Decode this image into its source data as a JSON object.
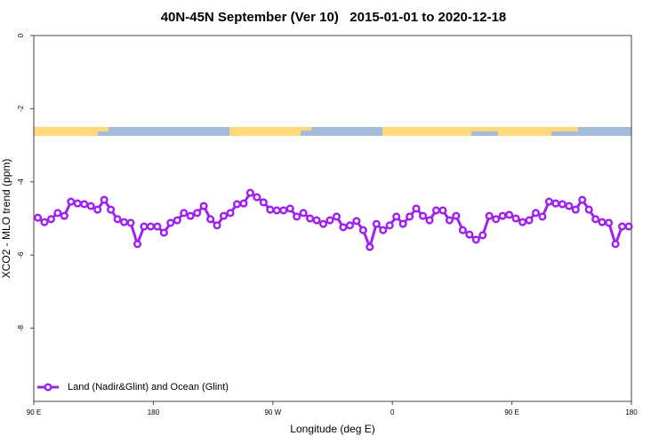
{
  "chart_data": {
    "type": "line",
    "title": "40N-45N September (Ver 10)   2015-01-01 to 2020-12-18",
    "x_label": "Longitude (deg E)",
    "y_label": "XCO2 - MLO trend (ppm)",
    "xlim": [
      90,
      540
    ],
    "ylim": [
      -10,
      0
    ],
    "xticks": [
      {
        "value": 90,
        "label": "90 E"
      },
      180,
      {
        "value": 270,
        "label": "90 W"
      },
      {
        "value": 360,
        "label": "0"
      },
      {
        "value": 450,
        "label": "90 E"
      },
      {
        "value": 540,
        "label": "180"
      }
    ],
    "yticks": [
      0,
      -2,
      -4,
      -6,
      -8
    ],
    "legend_position": "bottomleft",
    "x": [
      93,
      98,
      103,
      108,
      113,
      118,
      123,
      128,
      133,
      138,
      143,
      148,
      153,
      158,
      163,
      168,
      173,
      178,
      183,
      188,
      193,
      198,
      203,
      208,
      213,
      218,
      223,
      228,
      233,
      238,
      243,
      248,
      253,
      258,
      263,
      268,
      273,
      278,
      283,
      288,
      293,
      298,
      303,
      308,
      313,
      318,
      323,
      328,
      333,
      338,
      343,
      348,
      353,
      358,
      363,
      368,
      373,
      378,
      383,
      388,
      393,
      398,
      403,
      408,
      413,
      418,
      423,
      428,
      433,
      438,
      443,
      448,
      453,
      458,
      463,
      468,
      473,
      478,
      483,
      488,
      493,
      498,
      503,
      508,
      513,
      518,
      523,
      528,
      533,
      538
    ],
    "series": [
      {
        "name": "Land (Nadir&Glint) and Ocean (Glint)",
        "color": "#a020f0",
        "values": [
          -4.98,
          -5.1,
          -5.02,
          -4.85,
          -4.93,
          -4.54,
          -4.59,
          -4.61,
          -4.66,
          -4.76,
          -4.49,
          -4.76,
          -5.02,
          -5.1,
          -5.12,
          -5.7,
          -5.22,
          -5.22,
          -5.22,
          -5.39,
          -5.12,
          -5.05,
          -4.85,
          -4.93,
          -4.85,
          -4.66,
          -5.02,
          -5.19,
          -4.93,
          -4.85,
          -4.61,
          -4.59,
          -4.3,
          -4.42,
          -4.56,
          -4.76,
          -4.78,
          -4.78,
          -4.73,
          -4.95,
          -4.85,
          -5.0,
          -5.05,
          -5.15,
          -5.05,
          -4.95,
          -5.24,
          -5.19,
          -5.07,
          -5.32,
          -5.78,
          -5.15,
          -5.32,
          -5.19,
          -4.95,
          -5.15,
          -4.95,
          -4.73,
          -4.93,
          -5.05,
          -4.78,
          -4.78,
          -5.05,
          -4.93,
          -5.32,
          -5.44,
          -5.58,
          -5.46,
          -4.93,
          -5.02,
          -4.93,
          -4.9,
          -5.0,
          -5.1,
          -5.05,
          -4.85,
          -4.95,
          -4.54,
          -4.59,
          -4.61,
          -4.66,
          -4.76,
          -4.49,
          -4.76,
          -5.02,
          -5.1,
          -5.12,
          -5.7,
          -5.22,
          -5.22
        ]
      }
    ]
  }
}
